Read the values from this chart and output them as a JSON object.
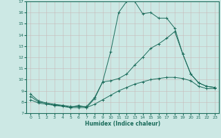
{
  "title": "",
  "xlabel": "Humidex (Indice chaleur)",
  "ylabel": "",
  "bg_color": "#cce8e4",
  "line_color": "#1a6b5a",
  "xlim": [
    -0.5,
    23.5
  ],
  "ylim": [
    7,
    17
  ],
  "yticks": [
    7,
    8,
    9,
    10,
    11,
    12,
    13,
    14,
    15,
    16,
    17
  ],
  "xticks": [
    0,
    1,
    2,
    3,
    4,
    5,
    6,
    7,
    8,
    9,
    10,
    11,
    12,
    13,
    14,
    15,
    16,
    17,
    18,
    19,
    20,
    21,
    22,
    23
  ],
  "series": [
    {
      "x": [
        0,
        1,
        2,
        3,
        4,
        5,
        6,
        7,
        8,
        9,
        10,
        11,
        12,
        13,
        14,
        15,
        16,
        17,
        18,
        19,
        20,
        21,
        22,
        23
      ],
      "y": [
        8.7,
        8.1,
        7.9,
        7.7,
        7.7,
        7.5,
        7.7,
        7.5,
        8.3,
        9.8,
        12.5,
        16.0,
        17.0,
        17.0,
        15.9,
        16.0,
        15.5,
        15.5,
        14.6,
        12.3,
        10.5,
        9.7,
        9.4,
        9.3
      ]
    },
    {
      "x": [
        0,
        1,
        2,
        3,
        4,
        5,
        6,
        7,
        8,
        9,
        10,
        11,
        12,
        13,
        14,
        15,
        16,
        17,
        18,
        19,
        20,
        21,
        22,
        23
      ],
      "y": [
        8.5,
        8.0,
        7.9,
        7.8,
        7.7,
        7.6,
        7.6,
        7.6,
        8.4,
        9.8,
        9.9,
        10.1,
        10.5,
        11.3,
        12.0,
        12.8,
        13.2,
        13.7,
        14.3,
        12.3,
        10.5,
        9.7,
        9.4,
        9.3
      ]
    },
    {
      "x": [
        0,
        1,
        2,
        3,
        4,
        5,
        6,
        7,
        8,
        9,
        10,
        11,
        12,
        13,
        14,
        15,
        16,
        17,
        18,
        19,
        20,
        21,
        22,
        23
      ],
      "y": [
        8.2,
        7.9,
        7.8,
        7.7,
        7.6,
        7.5,
        7.5,
        7.5,
        7.8,
        8.2,
        8.6,
        9.0,
        9.3,
        9.6,
        9.8,
        10.0,
        10.1,
        10.2,
        10.2,
        10.1,
        9.9,
        9.4,
        9.2,
        9.2
      ]
    }
  ]
}
